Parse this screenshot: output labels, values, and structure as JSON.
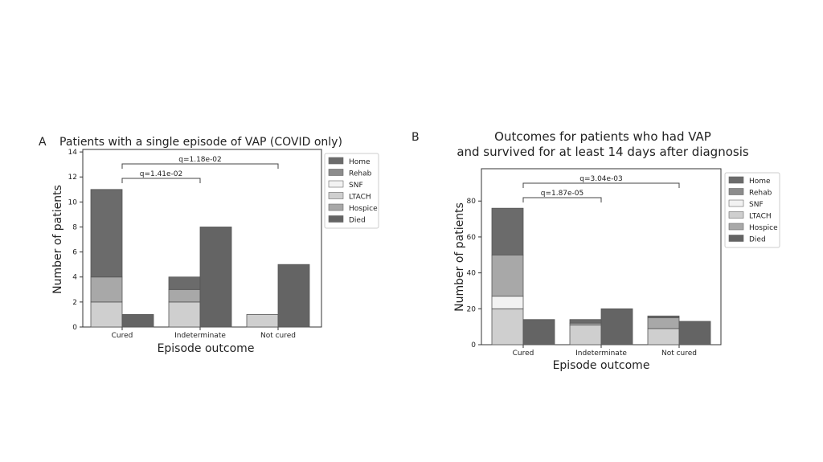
{
  "colors": {
    "Home": "#6b6b6b",
    "Rehab": "#8c8c8c",
    "SNF": "#f2f2f2",
    "LTACH": "#cfcfcf",
    "Hospice": "#a8a8a8",
    "Died": "#646464"
  },
  "chart_data": [
    {
      "panel_label": "A",
      "type": "bar",
      "stacked": true,
      "title": "Patients with a single episode of VAP (COVID only)",
      "xlabel": "Episode outcome",
      "ylabel": "Number of patients",
      "categories": [
        "Cured",
        "Indeterminate",
        "Not cured"
      ],
      "yticks": [
        0,
        2,
        4,
        6,
        8,
        10,
        12,
        14
      ],
      "ylim": [
        0,
        14.2
      ],
      "legend_position": "right",
      "legend": [
        "Home",
        "Rehab",
        "SNF",
        "LTACH",
        "Hospice",
        "Died"
      ],
      "series": [
        {
          "name": "Home",
          "values": [
            7,
            1,
            0
          ]
        },
        {
          "name": "Rehab",
          "values": [
            0,
            0,
            0
          ]
        },
        {
          "name": "SNF",
          "values": [
            0,
            0,
            0
          ]
        },
        {
          "name": "LTACH",
          "values": [
            2,
            2,
            1
          ]
        },
        {
          "name": "Hospice",
          "values": [
            2,
            1,
            0
          ]
        },
        {
          "name": "Died",
          "values": [
            1,
            8,
            5
          ]
        }
      ],
      "annotations": [
        {
          "text": "q=1.41e-02",
          "from": "Cured",
          "to": "Indeterminate"
        },
        {
          "text": "q=1.18e-02",
          "from": "Cured",
          "to": "Not cured"
        }
      ]
    },
    {
      "panel_label": "B",
      "type": "bar",
      "stacked": true,
      "title": [
        "Outcomes for patients who had VAP",
        "and survived for at least 14 days after diagnosis"
      ],
      "xlabel": "Episode outcome",
      "ylabel": "Number of patients",
      "categories": [
        "Cured",
        "Indeterminate",
        "Not cured"
      ],
      "yticks": [
        0,
        20,
        40,
        60,
        80
      ],
      "ylim": [
        0,
        98
      ],
      "legend_position": "right",
      "legend": [
        "Home",
        "Rehab",
        "SNF",
        "LTACH",
        "Hospice",
        "Died"
      ],
      "series": [
        {
          "name": "Home",
          "values": [
            26,
            2,
            1
          ]
        },
        {
          "name": "Rehab",
          "values": [
            0,
            0,
            0
          ]
        },
        {
          "name": "SNF",
          "values": [
            7,
            0,
            0
          ]
        },
        {
          "name": "LTACH",
          "values": [
            20,
            11,
            9
          ]
        },
        {
          "name": "Hospice",
          "values": [
            23,
            1,
            6
          ]
        },
        {
          "name": "Died",
          "values": [
            14,
            20,
            13
          ]
        }
      ],
      "annotations": [
        {
          "text": "q=1.87e-05",
          "from": "Cured",
          "to": "Indeterminate"
        },
        {
          "text": "q=3.04e-03",
          "from": "Cured",
          "to": "Not cured"
        }
      ]
    }
  ]
}
